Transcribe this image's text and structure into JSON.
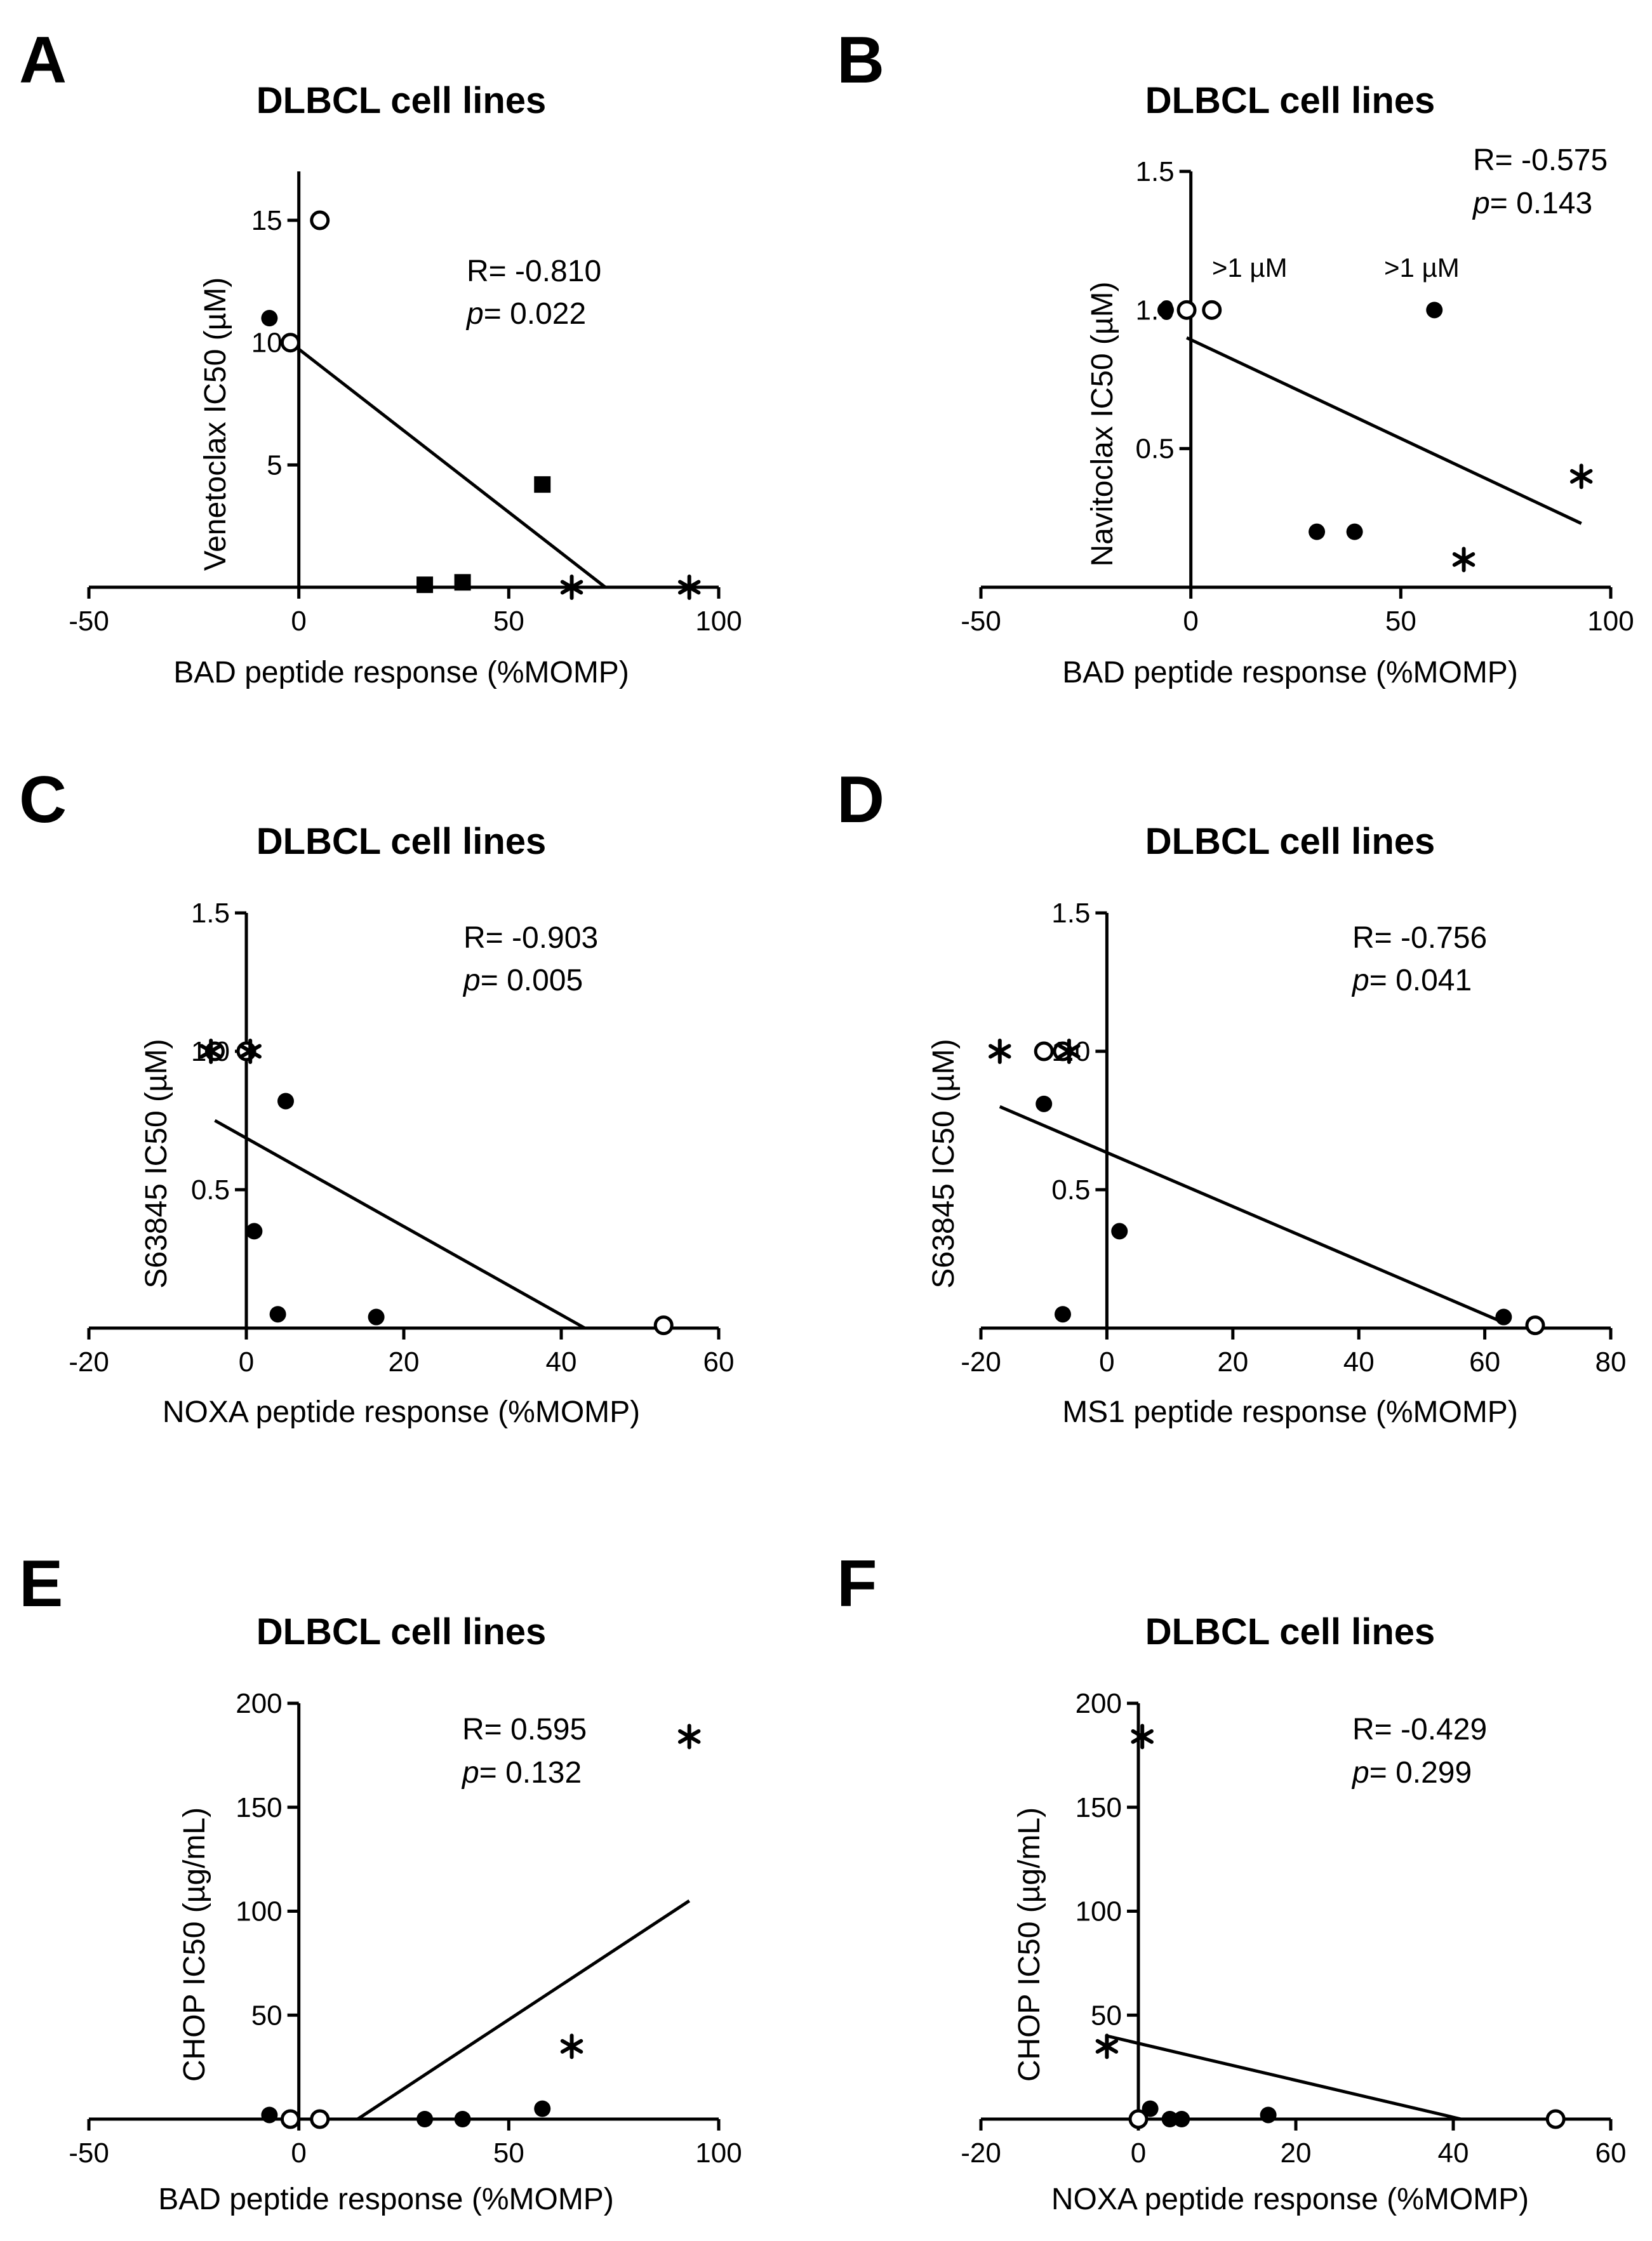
{
  "figure": {
    "panels": [
      {
        "id": "A",
        "letter": "A",
        "title": "DLBCL cell lines",
        "stat_r": "R= -0.810",
        "stat_p_label": "p",
        "stat_p_value": "= 0.022"
      },
      {
        "id": "B",
        "letter": "B",
        "title": "DLBCL cell lines",
        "stat_r": "R= -0.575",
        "stat_p_label": "p",
        "stat_p_value": "= 0.143"
      },
      {
        "id": "C",
        "letter": "C",
        "title": "DLBCL cell lines",
        "stat_r": "R= -0.903",
        "stat_p_label": "p",
        "stat_p_value": "= 0.005"
      },
      {
        "id": "D",
        "letter": "D",
        "title": "DLBCL cell lines",
        "stat_r": "R= -0.756",
        "stat_p_label": "p",
        "stat_p_value": "= 0.041"
      },
      {
        "id": "E",
        "letter": "E",
        "title": "DLBCL cell lines",
        "stat_r": "R= 0.595",
        "stat_p_label": "p",
        "stat_p_value": "= 0.132"
      },
      {
        "id": "F",
        "letter": "F",
        "title": "DLBCL cell lines",
        "stat_r": "R= -0.429",
        "stat_p_label": "p",
        "stat_p_value": "= 0.299"
      }
    ]
  },
  "chart_data": [
    {
      "id": "A",
      "type": "scatter",
      "title": "DLBCL cell lines",
      "xlabel": "BAD peptide response (%MOMP)",
      "ylabel": "Venetoclax IC50 (µM)",
      "xlim": [
        -50,
        100
      ],
      "ylim": [
        0,
        17
      ],
      "xticks": [
        -50,
        0,
        50,
        100
      ],
      "xtick_labels": [
        "-50",
        "0",
        "50",
        "100"
      ],
      "yticks": [
        5,
        10,
        15
      ],
      "ytick_labels": [
        "5",
        "10",
        "15"
      ],
      "stats": {
        "R": -0.81,
        "p": 0.022
      },
      "points": [
        {
          "x": -7,
          "y": 11.0,
          "marker": "filled-circle"
        },
        {
          "x": -2,
          "y": 10.0,
          "marker": "open-circle"
        },
        {
          "x": 5,
          "y": 15.0,
          "marker": "open-circle"
        },
        {
          "x": 58,
          "y": 4.2,
          "marker": "filled-square"
        },
        {
          "x": 30,
          "y": 0.1,
          "marker": "filled-square"
        },
        {
          "x": 39,
          "y": 0.2,
          "marker": "filled-square"
        },
        {
          "x": 65,
          "y": 0.0,
          "marker": "asterisk"
        },
        {
          "x": 93,
          "y": 0.0,
          "marker": "asterisk"
        }
      ],
      "fit_line": [
        {
          "x": -2,
          "y": 10.0
        },
        {
          "x": 73,
          "y": 0.0
        }
      ],
      "annotations": []
    },
    {
      "id": "B",
      "type": "scatter",
      "title": "DLBCL cell lines",
      "xlabel": "BAD peptide response (%MOMP)",
      "ylabel": "Navitoclax IC50 (µM)",
      "xlim": [
        -50,
        100
      ],
      "ylim": [
        0,
        1.5
      ],
      "xticks": [
        -50,
        0,
        50,
        100
      ],
      "xtick_labels": [
        "-50",
        "0",
        "50",
        "100"
      ],
      "yticks": [
        0.5,
        1.0,
        1.5
      ],
      "ytick_labels": [
        "0.5",
        "1.0",
        "1.5"
      ],
      "stats": {
        "R": -0.575,
        "p": 0.143
      },
      "points": [
        {
          "x": -6,
          "y": 1.0,
          "marker": "filled-circle"
        },
        {
          "x": -1,
          "y": 1.0,
          "marker": "open-circle"
        },
        {
          "x": 5,
          "y": 1.0,
          "marker": "open-circle"
        },
        {
          "x": 58,
          "y": 1.0,
          "marker": "filled-circle"
        },
        {
          "x": 30,
          "y": 0.2,
          "marker": "filled-circle"
        },
        {
          "x": 39,
          "y": 0.2,
          "marker": "filled-circle"
        },
        {
          "x": 93,
          "y": 0.4,
          "marker": "asterisk"
        },
        {
          "x": 65,
          "y": 0.1,
          "marker": "asterisk"
        }
      ],
      "fit_line": [
        {
          "x": -1,
          "y": 0.9
        },
        {
          "x": 93,
          "y": 0.23
        }
      ],
      "annotations": [
        {
          "x": 14,
          "y": 1.12,
          "text": ">1 µM"
        },
        {
          "x": 55,
          "y": 1.12,
          "text": ">1 µM"
        }
      ]
    },
    {
      "id": "C",
      "type": "scatter",
      "title": "DLBCL cell lines",
      "xlabel": "NOXA peptide response (%MOMP)",
      "ylabel": "S63845 IC50 (µM)",
      "xlim": [
        -20,
        60
      ],
      "ylim": [
        0,
        1.5
      ],
      "xticks": [
        -20,
        0,
        20,
        40,
        60
      ],
      "xtick_labels": [
        "-20",
        "0",
        "20",
        "40",
        "60"
      ],
      "yticks": [
        0.5,
        1.0,
        1.5
      ],
      "ytick_labels": [
        "0.5",
        "1.0",
        "1.5"
      ],
      "stats": {
        "R": -0.903,
        "p": 0.005
      },
      "points": [
        {
          "x": -4,
          "y": 1.0,
          "marker": "open-circle"
        },
        {
          "x": -4.5,
          "y": 1.0,
          "marker": "asterisk"
        },
        {
          "x": 0,
          "y": 1.0,
          "marker": "open-circle"
        },
        {
          "x": 0.5,
          "y": 1.0,
          "marker": "asterisk"
        },
        {
          "x": 5,
          "y": 0.82,
          "marker": "filled-circle"
        },
        {
          "x": 1,
          "y": 0.35,
          "marker": "filled-circle"
        },
        {
          "x": 4,
          "y": 0.05,
          "marker": "filled-circle"
        },
        {
          "x": 16.5,
          "y": 0.04,
          "marker": "filled-circle"
        },
        {
          "x": 53,
          "y": 0.01,
          "marker": "open-circle"
        }
      ],
      "fit_line": [
        {
          "x": -4,
          "y": 0.75
        },
        {
          "x": 43,
          "y": 0.0
        }
      ],
      "annotations": []
    },
    {
      "id": "D",
      "type": "scatter",
      "title": "DLBCL cell lines",
      "xlabel": "MS1 peptide response (%MOMP)",
      "ylabel": "S63845 IC50 (µM)",
      "xlim": [
        -20,
        80
      ],
      "ylim": [
        0,
        1.5
      ],
      "xticks": [
        -20,
        0,
        20,
        40,
        60,
        80
      ],
      "xtick_labels": [
        "-20",
        "0",
        "20",
        "40",
        "60",
        "80"
      ],
      "yticks": [
        0.5,
        1.0,
        1.5
      ],
      "ytick_labels": [
        "0.5",
        "1.0",
        "1.5"
      ],
      "stats": {
        "R": -0.756,
        "p": 0.041
      },
      "points": [
        {
          "x": -17,
          "y": 1.0,
          "marker": "asterisk"
        },
        {
          "x": -10,
          "y": 1.0,
          "marker": "open-circle"
        },
        {
          "x": -7,
          "y": 1.0,
          "marker": "open-circle"
        },
        {
          "x": -6,
          "y": 1.0,
          "marker": "asterisk"
        },
        {
          "x": -10,
          "y": 0.81,
          "marker": "filled-circle"
        },
        {
          "x": 2,
          "y": 0.35,
          "marker": "filled-circle"
        },
        {
          "x": -7,
          "y": 0.05,
          "marker": "filled-circle"
        },
        {
          "x": 63,
          "y": 0.04,
          "marker": "filled-circle"
        },
        {
          "x": 68,
          "y": 0.01,
          "marker": "open-circle"
        }
      ],
      "fit_line": [
        {
          "x": -17,
          "y": 0.8
        },
        {
          "x": 63,
          "y": 0.02
        }
      ],
      "annotations": []
    },
    {
      "id": "E",
      "type": "scatter",
      "title": "DLBCL cell lines",
      "xlabel": "BAD peptide response (%MOMP)",
      "ylabel": "CHOP IC50 (µg/mL)",
      "xlim": [
        -50,
        100
      ],
      "ylim": [
        0,
        200
      ],
      "xticks": [
        -50,
        0,
        50,
        100
      ],
      "xtick_labels": [
        "-50",
        "0",
        "50",
        "100"
      ],
      "yticks": [
        50,
        100,
        150,
        200
      ],
      "ytick_labels": [
        "50",
        "100",
        "150",
        "200"
      ],
      "stats": {
        "R": 0.595,
        "p": 0.132
      },
      "points": [
        {
          "x": 93,
          "y": 184,
          "marker": "asterisk"
        },
        {
          "x": 65,
          "y": 35,
          "marker": "asterisk"
        },
        {
          "x": -7,
          "y": 2,
          "marker": "filled-circle"
        },
        {
          "x": -2,
          "y": 0,
          "marker": "open-circle"
        },
        {
          "x": 5,
          "y": 0,
          "marker": "open-circle"
        },
        {
          "x": 30,
          "y": 0,
          "marker": "filled-circle"
        },
        {
          "x": 39,
          "y": 0,
          "marker": "filled-circle"
        },
        {
          "x": 58,
          "y": 5,
          "marker": "filled-circle"
        }
      ],
      "fit_line": [
        {
          "x": 14,
          "y": 0
        },
        {
          "x": 93,
          "y": 105
        }
      ],
      "annotations": []
    },
    {
      "id": "F",
      "type": "scatter",
      "title": "DLBCL cell lines",
      "xlabel": "NOXA peptide response (%MOMP)",
      "ylabel": "CHOP IC50 (µg/mL)",
      "xlim": [
        -20,
        60
      ],
      "ylim": [
        0,
        200
      ],
      "xticks": [
        -20,
        0,
        20,
        40,
        60
      ],
      "xtick_labels": [
        "-20",
        "0",
        "20",
        "40",
        "60"
      ],
      "yticks": [
        50,
        100,
        150,
        200
      ],
      "ytick_labels": [
        "50",
        "100",
        "150",
        "200"
      ],
      "stats": {
        "R": -0.429,
        "p": 0.299
      },
      "points": [
        {
          "x": 0.5,
          "y": 184,
          "marker": "asterisk"
        },
        {
          "x": -4,
          "y": 35,
          "marker": "asterisk"
        },
        {
          "x": 0,
          "y": 0,
          "marker": "open-circle"
        },
        {
          "x": 1.5,
          "y": 5,
          "marker": "filled-circle"
        },
        {
          "x": 4,
          "y": 0,
          "marker": "filled-circle"
        },
        {
          "x": 5.5,
          "y": 0,
          "marker": "filled-circle"
        },
        {
          "x": 16.5,
          "y": 2,
          "marker": "filled-circle"
        },
        {
          "x": 53,
          "y": 0,
          "marker": "open-circle"
        }
      ],
      "fit_line": [
        {
          "x": -4,
          "y": 40
        },
        {
          "x": 41,
          "y": 0
        }
      ],
      "annotations": []
    }
  ]
}
